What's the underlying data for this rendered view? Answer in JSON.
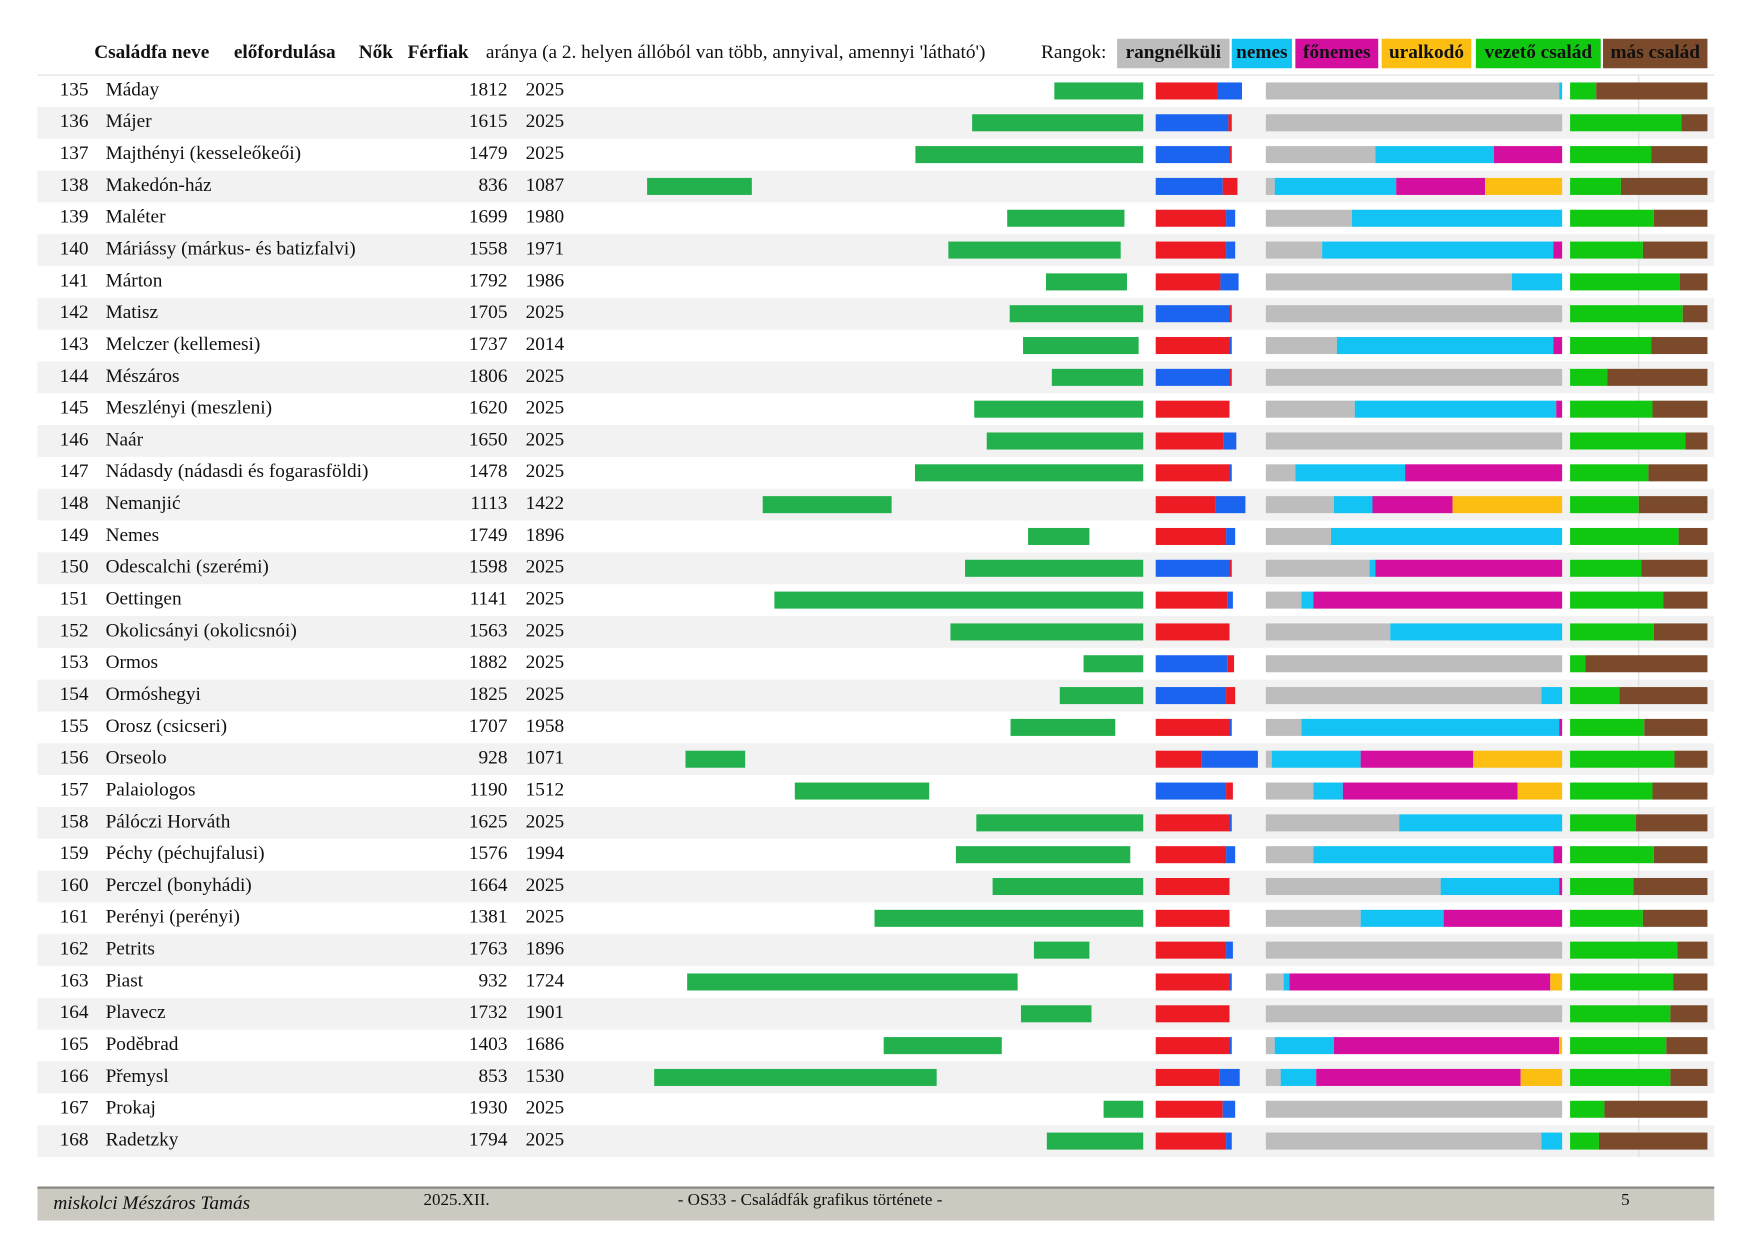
{
  "header": {
    "name": "Családfa neve",
    "presence": "előfordulása",
    "women": "Nők",
    "men": "Férfiak",
    "ratio": "aránya (a 2. helyen állóból van több, annyival, amennyi 'látható')",
    "ranks": "Rangok:"
  },
  "colors": {
    "presence": "#22b14c",
    "women": "#ed1c24",
    "men": "#1a64f0",
    "band": "#f2f2f2"
  },
  "legend": [
    {
      "label": "rangnélküli",
      "color": "#bdbdbd"
    },
    {
      "label": "nemes",
      "color": "#12c3f4"
    },
    {
      "label": "főnemes",
      "color": "#d40fa0"
    },
    {
      "label": "uralkodó",
      "color": "#fdbe12"
    },
    {
      "label": "vezető család",
      "color": "#10c810"
    },
    {
      "label": "más család",
      "color": "#7b4a2a"
    }
  ],
  "rows": [
    {
      "num": 135,
      "name": "Máday",
      "start": 1812,
      "end": 2025,
      "women": 54,
      "men": 22,
      "ranks": [
        99,
        1,
        0,
        0
      ],
      "leader": 19
    },
    {
      "num": 136,
      "name": "Májer",
      "start": 1615,
      "end": 2025,
      "women": 3,
      "men": 64,
      "men_first": true,
      "ranks": [
        100,
        0,
        0,
        0
      ],
      "leader": 81
    },
    {
      "num": 137,
      "name": "Majthényi (kesseleőkeői)",
      "start": 1479,
      "end": 2025,
      "women": 2,
      "men": 65,
      "men_first": true,
      "ranks": [
        37,
        40,
        23,
        0
      ],
      "leader": 59
    },
    {
      "num": 138,
      "name": "Makedón-ház",
      "start": 836,
      "end": 1087,
      "women": 13,
      "men": 59,
      "men_first": true,
      "ranks": [
        3,
        41,
        30,
        26
      ],
      "leader": 37
    },
    {
      "num": 139,
      "name": "Maléter",
      "start": 1699,
      "end": 1980,
      "women": 62,
      "men": 8,
      "ranks": [
        29,
        71,
        0,
        0
      ],
      "leader": 61
    },
    {
      "num": 140,
      "name": "Máriássy (márkus- és batizfalvi)",
      "start": 1558,
      "end": 1971,
      "women": 62,
      "men": 8,
      "ranks": [
        19,
        78,
        3,
        0
      ],
      "leader": 53
    },
    {
      "num": 141,
      "name": "Márton",
      "start": 1792,
      "end": 1986,
      "women": 57,
      "men": 16,
      "ranks": [
        83,
        17,
        0,
        0
      ],
      "leader": 80
    },
    {
      "num": 142,
      "name": "Matisz",
      "start": 1705,
      "end": 2025,
      "women": 2,
      "men": 65,
      "men_first": true,
      "ranks": [
        100,
        0,
        0,
        0
      ],
      "leader": 82
    },
    {
      "num": 143,
      "name": "Melczer (kellemesi)",
      "start": 1737,
      "end": 2014,
      "women": 65,
      "men": 2,
      "ranks": [
        24,
        73,
        3,
        0
      ],
      "leader": 59
    },
    {
      "num": 144,
      "name": "Mészáros",
      "start": 1806,
      "end": 2025,
      "women": 2,
      "men": 65,
      "men_first": true,
      "ranks": [
        100,
        0,
        0,
        0
      ],
      "leader": 27
    },
    {
      "num": 145,
      "name": "Meszlényi (meszleni)",
      "start": 1620,
      "end": 2025,
      "women": 65,
      "men": 0,
      "ranks": [
        30,
        68,
        2,
        0
      ],
      "leader": 60
    },
    {
      "num": 146,
      "name": "Naár",
      "start": 1650,
      "end": 2025,
      "women": 60,
      "men": 11,
      "ranks": [
        100,
        0,
        0,
        0
      ],
      "leader": 84
    },
    {
      "num": 147,
      "name": "Nádasdy (nádasdi és fogarasföldi)",
      "start": 1478,
      "end": 2025,
      "women": 65,
      "men": 2,
      "ranks": [
        10,
        37,
        53,
        0
      ],
      "leader": 57
    },
    {
      "num": 148,
      "name": "Nemanjić",
      "start": 1113,
      "end": 1422,
      "women": 53,
      "men": 26,
      "ranks": [
        23,
        13,
        27,
        37
      ],
      "leader": 50
    },
    {
      "num": 149,
      "name": "Nemes",
      "start": 1749,
      "end": 1896,
      "women": 62,
      "men": 8,
      "ranks": [
        22,
        78,
        0,
        0
      ],
      "leader": 79
    },
    {
      "num": 150,
      "name": "Odescalchi (szerémi)",
      "start": 1598,
      "end": 2025,
      "women": 2,
      "men": 65,
      "men_first": true,
      "ranks": [
        35,
        2,
        63,
        0
      ],
      "leader": 52
    },
    {
      "num": 151,
      "name": "Oettingen",
      "start": 1141,
      "end": 2025,
      "women": 63,
      "men": 5,
      "ranks": [
        12,
        4,
        84,
        0
      ],
      "leader": 68
    },
    {
      "num": 152,
      "name": "Okolicsányi (okolicsnói)",
      "start": 1563,
      "end": 2025,
      "women": 65,
      "men": 0,
      "ranks": [
        42,
        58,
        0,
        0
      ],
      "leader": 61
    },
    {
      "num": 153,
      "name": "Ormos",
      "start": 1882,
      "end": 2025,
      "women": 6,
      "men": 63,
      "men_first": true,
      "ranks": [
        100,
        0,
        0,
        0
      ],
      "leader": 11
    },
    {
      "num": 154,
      "name": "Ormóshegyi",
      "start": 1825,
      "end": 2025,
      "women": 8,
      "men": 62,
      "men_first": true,
      "ranks": [
        93,
        7,
        0,
        0
      ],
      "leader": 36
    },
    {
      "num": 155,
      "name": "Orosz (csicseri)",
      "start": 1707,
      "end": 1958,
      "women": 65,
      "men": 2,
      "ranks": [
        12,
        87,
        1,
        0
      ],
      "leader": 54
    },
    {
      "num": 156,
      "name": "Orseolo",
      "start": 928,
      "end": 1071,
      "women": 40,
      "men": 50,
      "ranks": [
        2,
        30,
        38,
        30
      ],
      "leader": 76
    },
    {
      "num": 157,
      "name": "Palaiologos",
      "start": 1190,
      "end": 1512,
      "women": 6,
      "men": 62,
      "men_first": true,
      "ranks": [
        16,
        10,
        59,
        15
      ],
      "leader": 60
    },
    {
      "num": 158,
      "name": "Pálóczi Horváth",
      "start": 1625,
      "end": 2025,
      "women": 65,
      "men": 2,
      "ranks": [
        45,
        55,
        0,
        0
      ],
      "leader": 48
    },
    {
      "num": 159,
      "name": "Péchy (péchujfalusi)",
      "start": 1576,
      "end": 1994,
      "women": 62,
      "men": 8,
      "ranks": [
        16,
        81,
        3,
        0
      ],
      "leader": 61
    },
    {
      "num": 160,
      "name": "Perczel (bonyhádi)",
      "start": 1664,
      "end": 2025,
      "women": 65,
      "men": 0,
      "ranks": [
        59,
        40,
        1,
        0
      ],
      "leader": 46
    },
    {
      "num": 161,
      "name": "Perényi (perényi)",
      "start": 1381,
      "end": 2025,
      "women": 65,
      "men": 0,
      "ranks": [
        32,
        28,
        40,
        0
      ],
      "leader": 53
    },
    {
      "num": 162,
      "name": "Petrits",
      "start": 1763,
      "end": 1896,
      "women": 62,
      "men": 6,
      "ranks": [
        100,
        0,
        0,
        0
      ],
      "leader": 78
    },
    {
      "num": 163,
      "name": "Piast",
      "start": 932,
      "end": 1724,
      "women": 65,
      "men": 2,
      "ranks": [
        6,
        2,
        88,
        4
      ],
      "leader": 75
    },
    {
      "num": 164,
      "name": "Plavecz",
      "start": 1732,
      "end": 1901,
      "women": 65,
      "men": 0,
      "ranks": [
        100,
        0,
        0,
        0
      ],
      "leader": 73
    },
    {
      "num": 165,
      "name": "Poděbrad",
      "start": 1403,
      "end": 1686,
      "women": 65,
      "men": 2,
      "ranks": [
        3,
        20,
        76,
        1
      ],
      "leader": 70
    },
    {
      "num": 166,
      "name": "Přemysl",
      "start": 853,
      "end": 1530,
      "women": 56,
      "men": 18,
      "ranks": [
        5,
        12,
        69,
        14
      ],
      "leader": 73
    },
    {
      "num": 167,
      "name": "Prokaj",
      "start": 1930,
      "end": 2025,
      "women": 59,
      "men": 11,
      "ranks": [
        100,
        0,
        0,
        0
      ],
      "leader": 25
    },
    {
      "num": 168,
      "name": "Radetzky",
      "start": 1794,
      "end": 2025,
      "women": 62,
      "men": 5,
      "ranks": [
        93,
        7,
        0,
        0
      ],
      "leader": 21
    }
  ],
  "footer": {
    "author": "miskolci Mészáros Tamás",
    "date": "2025.XII.",
    "doc": "- OS33  - Családfák grafikus története -",
    "page": "5"
  }
}
